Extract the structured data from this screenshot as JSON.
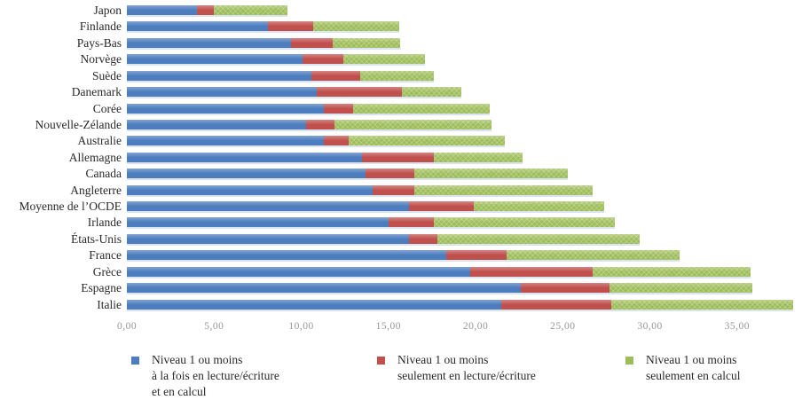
{
  "chart_data": {
    "type": "bar",
    "orientation": "horizontal-stacked",
    "title": "",
    "xlabel": "",
    "ylabel": "",
    "grid": false,
    "legend_position": "bottom",
    "x_axis": {
      "min": 0,
      "max": 35,
      "tick_values": [
        0,
        5,
        10,
        15,
        20,
        25,
        30,
        35
      ],
      "tick_labels": [
        "0,00",
        "5,00",
        "10,00",
        "15,00",
        "20,00",
        "25,00",
        "30,00",
        "35,00"
      ]
    },
    "categories": [
      "Japon",
      "Finlande",
      "Pays-Bas",
      "Norvège",
      "Suède",
      "Danemark",
      "Corée",
      "Nouvelle-Zélande",
      "Australie",
      "Allemagne",
      "Canada",
      "Angleterre",
      "Moyenne de l’OCDE",
      "Irlande",
      "États-Unis",
      "France",
      "Grèce",
      "Espagne",
      "Italie"
    ],
    "series": [
      {
        "key": "both",
        "name": "Niveau 1 ou moins à la fois en lecture/écriture et en calcul",
        "label_lines": [
          "Niveau 1 ou moins",
          "à la fois en lecture/écriture",
          "et en calcul"
        ],
        "color": "#4d7dbe",
        "values": [
          4.0,
          8.1,
          9.4,
          10.1,
          10.6,
          10.9,
          11.3,
          10.3,
          11.3,
          13.5,
          13.7,
          14.1,
          16.2,
          15.0,
          16.2,
          18.3,
          19.7,
          22.6,
          21.5
        ]
      },
      {
        "key": "literacy-only",
        "name": "Niveau 1 ou moins seulement en lecture/écriture",
        "label_lines": [
          "Niveau 1 ou moins",
          "seulement en lecture/écriture"
        ],
        "color": "#c0504d",
        "values": [
          1.0,
          2.6,
          2.4,
          2.3,
          2.8,
          4.9,
          1.7,
          1.6,
          1.4,
          4.1,
          2.8,
          2.4,
          3.7,
          2.6,
          1.6,
          3.5,
          7.0,
          5.1,
          6.3
        ]
      },
      {
        "key": "numeracy-only",
        "name": "Niveau 1 ou moins seulement en calcul",
        "label_lines": [
          "Niveau 1 ou moins",
          "seulement en calcul"
        ],
        "color": "#9dbd59",
        "values": [
          4.2,
          4.9,
          3.9,
          4.7,
          4.2,
          3.4,
          7.8,
          9.0,
          9.0,
          5.1,
          8.8,
          10.2,
          7.5,
          10.4,
          11.6,
          9.9,
          9.1,
          8.2,
          10.4
        ]
      }
    ]
  },
  "layout_totals": {
    "note": "stacked totals per category",
    "totals": [
      9.2,
      15.6,
      15.7,
      17.1,
      17.6,
      19.2,
      20.8,
      20.9,
      21.7,
      22.7,
      25.3,
      26.7,
      27.4,
      28.0,
      29.4,
      31.7,
      35.8,
      35.9,
      38.2
    ]
  }
}
